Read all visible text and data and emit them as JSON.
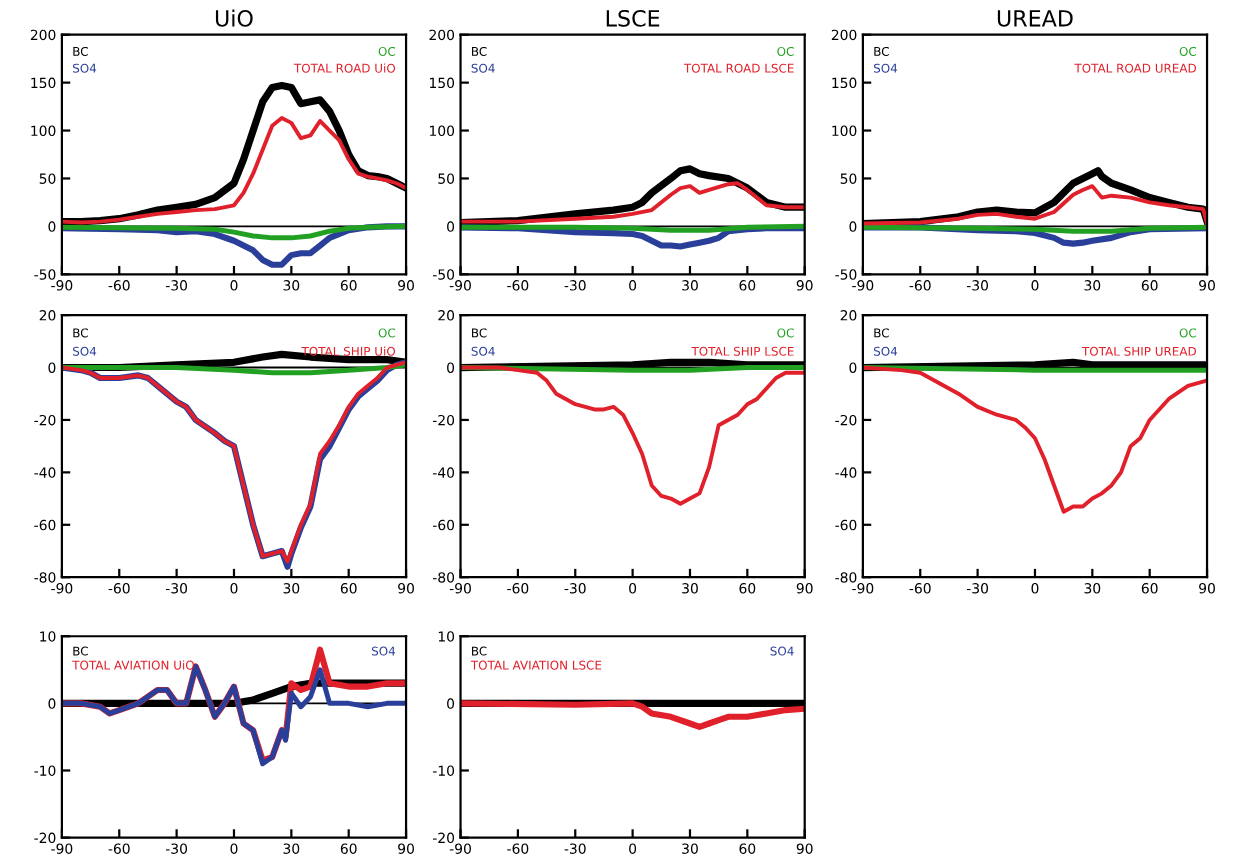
{
  "chart_data": [
    {
      "type": "line",
      "title": "UiO",
      "legend": "top",
      "xlim": [
        -90,
        90
      ],
      "xticks": [
        -90,
        -60,
        -30,
        0,
        30,
        60,
        90
      ],
      "ylim": [
        -50,
        200
      ],
      "yticks": [
        -50,
        0,
        50,
        100,
        150,
        200
      ],
      "ref_lines": [
        {
          "axis": "y",
          "value": 0,
          "color": "#000000"
        }
      ],
      "series": [
        {
          "name": "BC",
          "color": "#000000",
          "x": [
            -90,
            -80,
            -70,
            -60,
            -50,
            -40,
            -30,
            -20,
            -10,
            0,
            5,
            10,
            15,
            20,
            25,
            30,
            35,
            40,
            45,
            50,
            55,
            60,
            65,
            70,
            75,
            80,
            85,
            90
          ],
          "values": [
            5,
            5,
            6,
            8,
            12,
            17,
            20,
            23,
            30,
            45,
            70,
            100,
            130,
            145,
            147,
            145,
            128,
            130,
            132,
            120,
            100,
            75,
            58,
            53,
            52,
            50,
            45,
            40
          ]
        },
        {
          "name": "SO4",
          "color": "#2a3f9a",
          "x": [
            -90,
            -60,
            -40,
            -30,
            -20,
            -10,
            0,
            10,
            15,
            20,
            25,
            30,
            35,
            40,
            45,
            50,
            60,
            70,
            80,
            90
          ],
          "values": [
            -2,
            -3,
            -4,
            -6,
            -5,
            -8,
            -15,
            -25,
            -35,
            -40,
            -40,
            -30,
            -28,
            -28,
            -20,
            -12,
            -4,
            -1,
            0,
            0
          ]
        },
        {
          "name": "OC",
          "color": "#22a022",
          "x": [
            -90,
            -30,
            -10,
            0,
            10,
            20,
            30,
            40,
            50,
            60,
            70,
            90
          ],
          "values": [
            -1,
            -2,
            -3,
            -6,
            -10,
            -12,
            -12,
            -10,
            -5,
            -2,
            -1,
            0
          ]
        },
        {
          "name": "TOTAL ROAD UiO",
          "color": "#e0202a",
          "x": [
            -90,
            -80,
            -70,
            -60,
            -50,
            -40,
            -30,
            -20,
            -10,
            0,
            5,
            10,
            15,
            20,
            25,
            30,
            35,
            40,
            45,
            50,
            55,
            60,
            65,
            70,
            75,
            80,
            85,
            90
          ],
          "values": [
            5,
            4,
            5,
            7,
            10,
            13,
            15,
            17,
            18,
            22,
            35,
            55,
            80,
            105,
            113,
            108,
            92,
            95,
            110,
            100,
            90,
            70,
            55,
            52,
            50,
            48,
            45,
            40
          ]
        }
      ]
    },
    {
      "type": "line",
      "title": "LSCE",
      "legend": "top",
      "xlim": [
        -90,
        90
      ],
      "xticks": [
        -90,
        -60,
        -30,
        0,
        30,
        60,
        90
      ],
      "ylim": [
        -50,
        200
      ],
      "yticks": [
        -50,
        0,
        50,
        100,
        150,
        200
      ],
      "ref_lines": [
        {
          "axis": "y",
          "value": 0,
          "color": "#000000"
        }
      ],
      "series": [
        {
          "name": "BC",
          "color": "#000000",
          "x": [
            -90,
            -60,
            -30,
            -10,
            0,
            5,
            10,
            20,
            25,
            30,
            35,
            40,
            50,
            55,
            60,
            70,
            80,
            90
          ],
          "values": [
            4,
            6,
            13,
            17,
            20,
            25,
            35,
            50,
            58,
            60,
            55,
            53,
            50,
            45,
            40,
            25,
            20,
            20
          ]
        },
        {
          "name": "SO4",
          "color": "#2a3f9a",
          "x": [
            -90,
            -60,
            -30,
            -10,
            0,
            5,
            10,
            15,
            20,
            25,
            30,
            35,
            40,
            45,
            50,
            60,
            70,
            90
          ],
          "values": [
            -1,
            -2,
            -6,
            -7,
            -8,
            -10,
            -15,
            -20,
            -20,
            -21,
            -19,
            -17,
            -15,
            -12,
            -5,
            -3,
            -2,
            -2
          ]
        },
        {
          "name": "OC",
          "color": "#22a022",
          "x": [
            -90,
            -30,
            0,
            20,
            40,
            60,
            90
          ],
          "values": [
            -1,
            -1,
            -2,
            -4,
            -4,
            -1,
            0
          ]
        },
        {
          "name": "TOTAL ROAD LSCE",
          "color": "#e0202a",
          "x": [
            -90,
            -60,
            -30,
            -10,
            0,
            10,
            20,
            25,
            30,
            35,
            40,
            50,
            55,
            60,
            70,
            80,
            90
          ],
          "values": [
            5,
            5,
            8,
            10,
            13,
            17,
            33,
            40,
            42,
            35,
            38,
            44,
            45,
            38,
            22,
            20,
            20
          ]
        }
      ]
    },
    {
      "type": "line",
      "title": "UREAD",
      "legend": "top",
      "xlim": [
        -90,
        90
      ],
      "xticks": [
        -90,
        -60,
        -30,
        0,
        30,
        60,
        90
      ],
      "ylim": [
        -50,
        200
      ],
      "yticks": [
        -50,
        0,
        50,
        100,
        150,
        200
      ],
      "ref_lines": [
        {
          "axis": "y",
          "value": 0,
          "color": "#000000"
        }
      ],
      "series": [
        {
          "name": "BC",
          "color": "#000000",
          "x": [
            -90,
            -60,
            -40,
            -30,
            -20,
            -10,
            0,
            10,
            20,
            30,
            33,
            35,
            40,
            50,
            60,
            70,
            80,
            88,
            90
          ],
          "values": [
            3,
            5,
            10,
            15,
            17,
            15,
            14,
            25,
            45,
            55,
            58,
            52,
            45,
            38,
            30,
            25,
            20,
            18,
            5
          ]
        },
        {
          "name": "SO4",
          "color": "#2a3f9a",
          "x": [
            -90,
            -60,
            -30,
            -10,
            0,
            10,
            15,
            20,
            25,
            30,
            40,
            50,
            60,
            90
          ],
          "values": [
            -1,
            -1,
            -4,
            -5,
            -7,
            -12,
            -17,
            -18,
            -17,
            -15,
            -12,
            -6,
            -3,
            -2
          ]
        },
        {
          "name": "OC",
          "color": "#22a022",
          "x": [
            -90,
            -30,
            0,
            20,
            40,
            60,
            90
          ],
          "values": [
            -1,
            -2,
            -3,
            -5,
            -5,
            -2,
            -1
          ]
        },
        {
          "name": "TOTAL ROAD UREAD",
          "color": "#e0202a",
          "x": [
            -90,
            -60,
            -40,
            -30,
            -20,
            -10,
            0,
            10,
            20,
            25,
            30,
            35,
            40,
            50,
            60,
            70,
            80,
            88,
            90
          ],
          "values": [
            3,
            4,
            8,
            12,
            13,
            10,
            8,
            15,
            33,
            38,
            42,
            30,
            32,
            30,
            25,
            22,
            20,
            18,
            3
          ]
        }
      ]
    },
    {
      "type": "line",
      "legend": "top",
      "xlim": [
        -90,
        90
      ],
      "xticks": [
        -90,
        -60,
        -30,
        0,
        30,
        60,
        90
      ],
      "ylim": [
        -80,
        20
      ],
      "yticks": [
        -80,
        -60,
        -40,
        -20,
        0,
        20
      ],
      "ref_lines": [
        {
          "axis": "y",
          "value": 0,
          "color": "#000000"
        }
      ],
      "series": [
        {
          "name": "BC",
          "color": "#000000",
          "x": [
            -90,
            -60,
            -30,
            0,
            15,
            25,
            40,
            60,
            80,
            90
          ],
          "values": [
            0,
            0,
            1,
            2,
            4,
            5,
            4,
            3,
            3,
            2
          ]
        },
        {
          "name": "SO4",
          "color": "#2a3f9a",
          "x": [
            -90,
            -80,
            -75,
            -70,
            -60,
            -50,
            -45,
            -40,
            -30,
            -25,
            -20,
            -10,
            -5,
            0,
            5,
            10,
            15,
            20,
            25,
            28,
            30,
            35,
            40,
            45,
            50,
            55,
            60,
            65,
            70,
            75,
            80,
            85,
            90
          ],
          "values": [
            0,
            -1,
            -2,
            -4,
            -4,
            -3,
            -4,
            -7,
            -13,
            -15,
            -20,
            -25,
            -28,
            -30,
            -45,
            -60,
            -72,
            -71,
            -70,
            -76,
            -71,
            -61,
            -53,
            -35,
            -30,
            -23,
            -16,
            -11,
            -8,
            -5,
            -1,
            1,
            2
          ]
        },
        {
          "name": "OC",
          "color": "#22a022",
          "x": [
            -90,
            -30,
            0,
            20,
            40,
            60,
            80,
            90
          ],
          "values": [
            0,
            0,
            -1,
            -2,
            -2,
            -1,
            0,
            1
          ]
        },
        {
          "name": "TOTAL SHIP UiO",
          "color": "#e0202a",
          "x": [
            -90,
            -80,
            -75,
            -70,
            -60,
            -50,
            -45,
            -40,
            -30,
            -25,
            -20,
            -10,
            -5,
            0,
            5,
            10,
            15,
            20,
            25,
            28,
            30,
            35,
            40,
            45,
            50,
            55,
            60,
            65,
            70,
            75,
            80,
            85,
            90
          ],
          "values": [
            0,
            -1,
            -2,
            -4,
            -4,
            -3,
            -4,
            -7,
            -13,
            -15,
            -20,
            -25,
            -28,
            -30,
            -45,
            -60,
            -72,
            -71,
            -70,
            -74,
            -70,
            -60,
            -52,
            -33,
            -28,
            -22,
            -15,
            -10,
            -7,
            -4,
            0,
            1,
            2
          ]
        }
      ]
    },
    {
      "type": "line",
      "legend": "top",
      "xlim": [
        -90,
        90
      ],
      "xticks": [
        -90,
        -60,
        -30,
        0,
        30,
        60,
        90
      ],
      "ylim": [
        -80,
        20
      ],
      "yticks": [
        -80,
        -60,
        -40,
        -20,
        0,
        20
      ],
      "ref_lines": [
        {
          "axis": "y",
          "value": 0,
          "color": "#000000"
        }
      ],
      "series": [
        {
          "name": "BC",
          "color": "#000000",
          "x": [
            -90,
            0,
            20,
            40,
            60,
            90
          ],
          "values": [
            0,
            1,
            2,
            2,
            1,
            1
          ]
        },
        {
          "name": "SO4",
          "color": "#2a3f9a"
        },
        {
          "name": "OC",
          "color": "#22a022",
          "x": [
            -90,
            0,
            30,
            60,
            90
          ],
          "values": [
            0,
            -1,
            -1,
            0,
            0
          ]
        },
        {
          "name": "TOTAL SHIP LSCE",
          "color": "#e0202a",
          "x": [
            -90,
            -70,
            -60,
            -50,
            -45,
            -40,
            -30,
            -20,
            -15,
            -10,
            -5,
            0,
            5,
            10,
            15,
            20,
            25,
            30,
            35,
            40,
            45,
            50,
            55,
            60,
            65,
            70,
            75,
            80,
            90
          ],
          "values": [
            0,
            0,
            -1,
            -2,
            -5,
            -10,
            -14,
            -16,
            -16,
            -15,
            -18,
            -25,
            -33,
            -45,
            -49,
            -50,
            -52,
            -50,
            -48,
            -38,
            -22,
            -20,
            -18,
            -14,
            -12,
            -8,
            -4,
            -2,
            -2
          ]
        }
      ]
    },
    {
      "type": "line",
      "legend": "top",
      "xlim": [
        -90,
        90
      ],
      "xticks": [
        -90,
        -60,
        -30,
        0,
        30,
        60,
        90
      ],
      "ylim": [
        -80,
        20
      ],
      "yticks": [
        -80,
        -60,
        -40,
        -20,
        0,
        20
      ],
      "ref_lines": [
        {
          "axis": "y",
          "value": 0,
          "color": "#000000"
        }
      ],
      "series": [
        {
          "name": "BC",
          "color": "#000000",
          "x": [
            -90,
            0,
            20,
            30,
            60,
            90
          ],
          "values": [
            0,
            1,
            2,
            1,
            1,
            1
          ]
        },
        {
          "name": "SO4",
          "color": "#2a3f9a"
        },
        {
          "name": "OC",
          "color": "#22a022",
          "x": [
            -90,
            0,
            30,
            60,
            90
          ],
          "values": [
            0,
            -1,
            -1,
            -1,
            -1
          ]
        },
        {
          "name": "TOTAL SHIP UREAD",
          "color": "#e0202a",
          "x": [
            -90,
            -70,
            -60,
            -50,
            -40,
            -30,
            -20,
            -10,
            -5,
            0,
            5,
            10,
            15,
            20,
            25,
            30,
            35,
            40,
            45,
            50,
            55,
            60,
            70,
            80,
            90
          ],
          "values": [
            0,
            -1,
            -2,
            -6,
            -10,
            -15,
            -18,
            -20,
            -23,
            -27,
            -35,
            -45,
            -55,
            -53,
            -53,
            -50,
            -48,
            -45,
            -40,
            -30,
            -27,
            -20,
            -12,
            -7,
            -5
          ]
        }
      ]
    },
    {
      "type": "line",
      "legend": "top",
      "xlim": [
        -90,
        90
      ],
      "xticks": [
        -90,
        -60,
        -30,
        0,
        30,
        60,
        90
      ],
      "ylim": [
        -20,
        10
      ],
      "yticks": [
        -20,
        -10,
        0,
        10
      ],
      "ref_lines": [
        {
          "axis": "y",
          "value": 0,
          "color": "#000000"
        }
      ],
      "series": [
        {
          "name": "BC",
          "color": "#000000",
          "x": [
            -90,
            0,
            10,
            20,
            30,
            40,
            60,
            90
          ],
          "values": [
            0,
            0,
            0.5,
            1.5,
            2.5,
            3,
            3,
            3
          ]
        },
        {
          "name": "TOTAL AVIATION UiO",
          "color": "#e0202a",
          "x": [
            -90,
            -80,
            -70,
            -65,
            -60,
            -50,
            -40,
            -35,
            -30,
            -25,
            -20,
            -15,
            -10,
            -5,
            0,
            5,
            10,
            15,
            20,
            25,
            27,
            30,
            35,
            40,
            45,
            50,
            60,
            70,
            80,
            90
          ],
          "values": [
            0,
            0,
            -0.5,
            -1.5,
            -1,
            0,
            2,
            2,
            0,
            0,
            5.5,
            2,
            -2,
            0,
            2.5,
            -3,
            -4,
            -8.5,
            -8,
            -4,
            -5,
            3,
            2,
            2.5,
            8,
            3,
            2.5,
            2.5,
            3,
            3
          ]
        },
        {
          "name": "SO4",
          "color": "#2a3f9a",
          "x": [
            -90,
            -80,
            -70,
            -65,
            -60,
            -50,
            -40,
            -35,
            -30,
            -25,
            -20,
            -15,
            -10,
            -5,
            0,
            5,
            10,
            15,
            20,
            25,
            27,
            30,
            35,
            40,
            45,
            50,
            60,
            70,
            80,
            90
          ],
          "values": [
            0,
            0,
            -0.5,
            -1.5,
            -1,
            0,
            2,
            2,
            0,
            0,
            5.5,
            2,
            -2,
            0,
            2.5,
            -3,
            -4,
            -9,
            -8,
            -4,
            -5.5,
            1.5,
            -0.5,
            1,
            5,
            0,
            0,
            -0.5,
            0,
            0
          ]
        }
      ]
    },
    {
      "type": "line",
      "legend": "top",
      "xlim": [
        -90,
        90
      ],
      "xticks": [
        -90,
        -60,
        -30,
        0,
        30,
        60,
        90
      ],
      "ylim": [
        -20,
        10
      ],
      "yticks": [
        -20,
        -10,
        0,
        10
      ],
      "series": [
        {
          "name": "BC",
          "color": "#000000",
          "x": [
            -90,
            0,
            90
          ],
          "values": [
            0,
            0,
            0
          ]
        },
        {
          "name": "TOTAL AVIATION LSCE",
          "color": "#e0202a",
          "x": [
            -90,
            -30,
            0,
            5,
            10,
            20,
            30,
            35,
            40,
            45,
            50,
            60,
            70,
            80,
            90
          ],
          "values": [
            0,
            -0.2,
            0,
            -0.5,
            -1.5,
            -2,
            -3,
            -3.5,
            -3,
            -2.5,
            -2,
            -2,
            -1.5,
            -1,
            -0.8
          ]
        },
        {
          "name": "SO4",
          "color": "#2a3f9a"
        }
      ]
    }
  ]
}
